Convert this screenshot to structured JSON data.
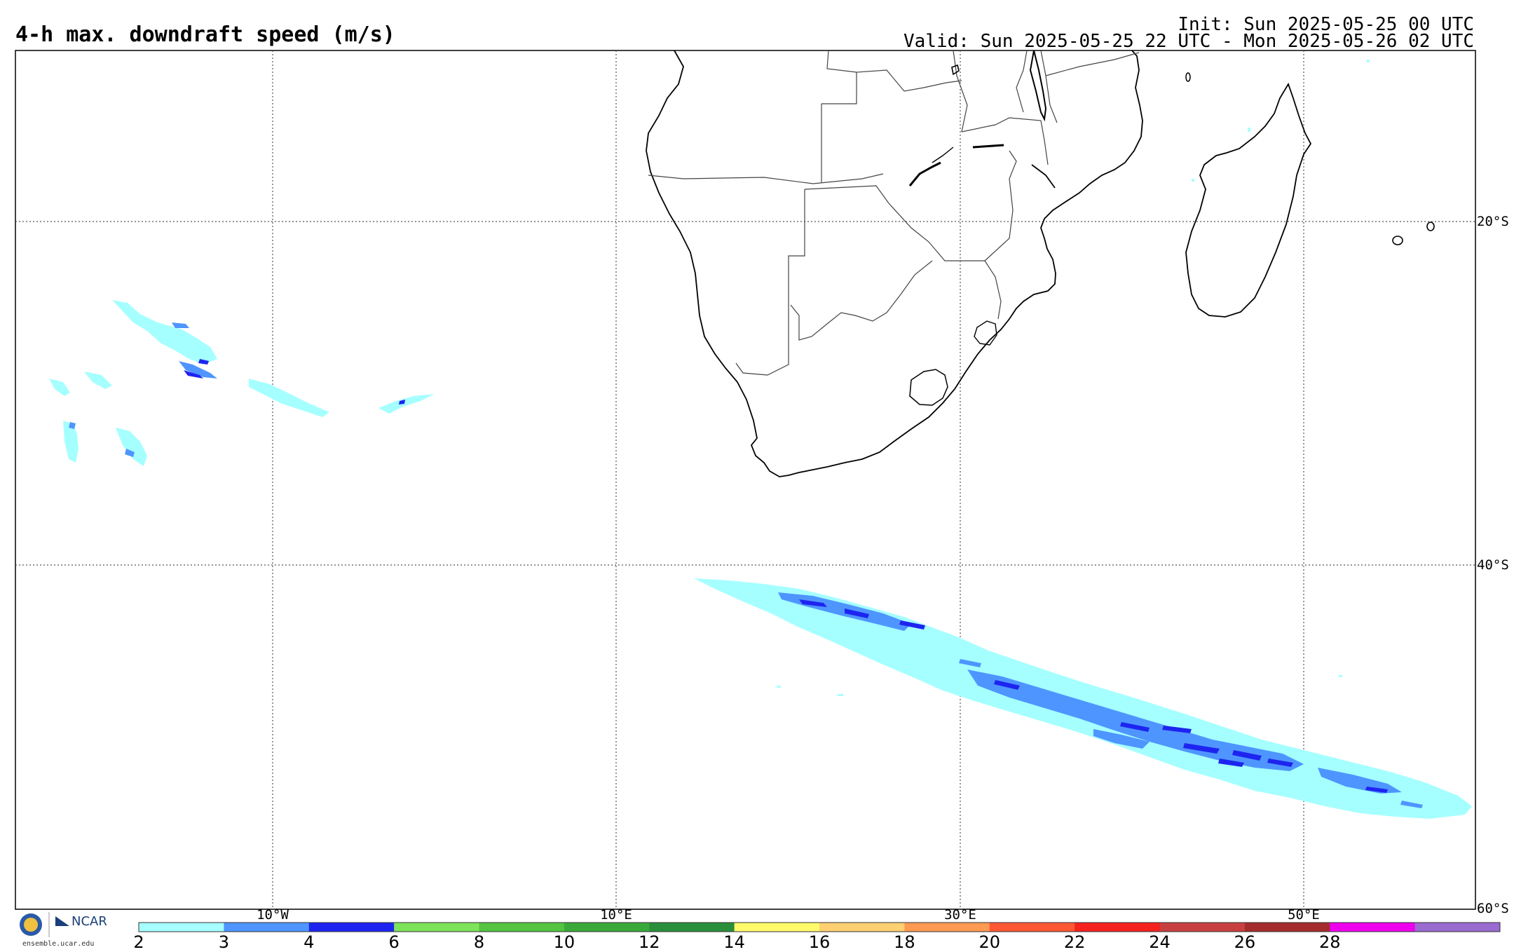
{
  "header": {
    "title": "4-h max. downdraft speed (m/s)",
    "init": "Init: Sun 2025-05-25 00 UTC",
    "valid": "Valid: Sun 2025-05-25 22 UTC - Mon 2025-05-26 02 UTC"
  },
  "map": {
    "region": "Southern Africa and South Atlantic / SW Indian Ocean",
    "gridlines": "dotted",
    "lat_labels": [
      "20°S",
      "40°S",
      "60°S"
    ],
    "lon_labels": [
      "10°W",
      "10°E",
      "30°E",
      "50°E"
    ]
  },
  "colorbar": {
    "ticks": [
      "2",
      "3",
      "4",
      "6",
      "8",
      "10",
      "12",
      "14",
      "16",
      "18",
      "20",
      "22",
      "24",
      "26",
      "28"
    ],
    "colors": [
      "#a6ffff",
      "#4f95ff",
      "#1e24f0",
      "#7de35a",
      "#54c442",
      "#39aa3a",
      "#2a8f3a",
      "#fffb6b",
      "#ffd072",
      "#ff9a52",
      "#ff5734",
      "#f5221e",
      "#c84040",
      "#a52c2c",
      "#ee00ee",
      "#9a6bd0"
    ]
  },
  "logo": {
    "org": "NCAR",
    "url": "ensemble.ucar.edu"
  }
}
